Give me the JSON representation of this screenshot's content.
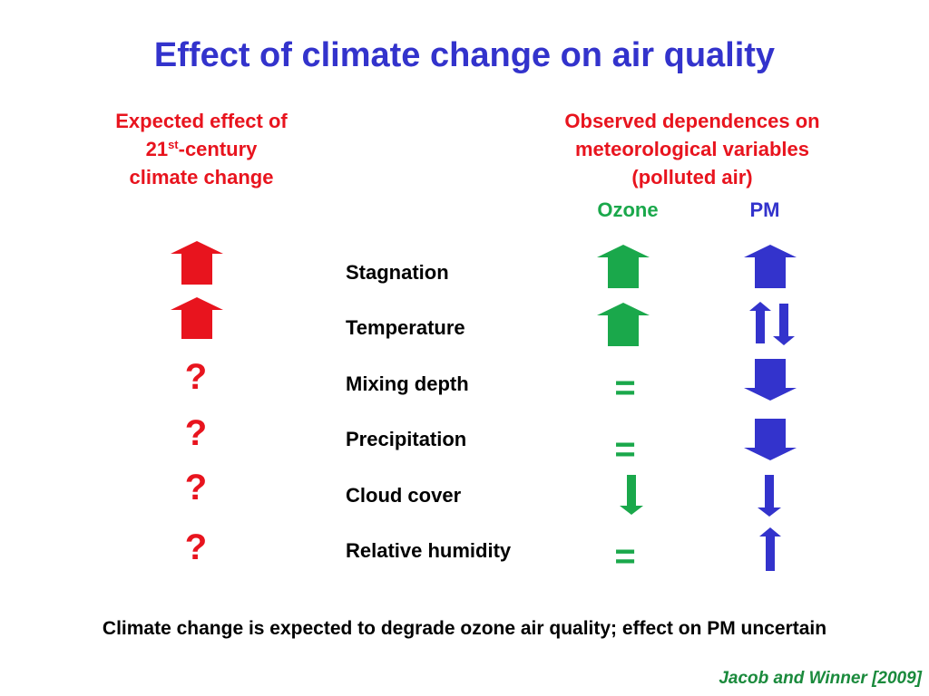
{
  "title": "Effect of climate change on air quality",
  "left_header": {
    "line1": "Expected effect of",
    "line2_pre": "21",
    "line2_sup": "st",
    "line2_post": "-century",
    "line3": "climate change"
  },
  "right_header": {
    "line1": "Observed dependences on",
    "line2": "meteorological variables",
    "line3": "(polluted air)"
  },
  "ozone_label": "Ozone",
  "pm_label": "PM",
  "variables": [
    {
      "label": "Stagnation",
      "expected": "up",
      "ozone": "up",
      "pm": "up"
    },
    {
      "label": "Temperature",
      "expected": "up",
      "ozone": "up",
      "pm": "up-down"
    },
    {
      "label": "Mixing depth",
      "expected": "?",
      "ozone": "=",
      "pm": "down"
    },
    {
      "label": "Precipitation",
      "expected": "?",
      "ozone": "=",
      "pm": "down"
    },
    {
      "label": "Cloud cover",
      "expected": "?",
      "ozone": "down-thin",
      "pm": "down-thin"
    },
    {
      "label": "Relative humidity",
      "expected": "?",
      "ozone": "=",
      "pm": "up-thin"
    }
  ],
  "symbols": {
    "question": "?",
    "equals": "="
  },
  "colors": {
    "title": "#3333cc",
    "expected": "#e8141e",
    "ozone": "#1aa84b",
    "pm": "#3333cc",
    "citation": "#1a8a3c"
  },
  "footer": "Climate change is expected to degrade ozone air quality; effect on PM uncertain",
  "citation": "Jacob and Winner [2009]"
}
